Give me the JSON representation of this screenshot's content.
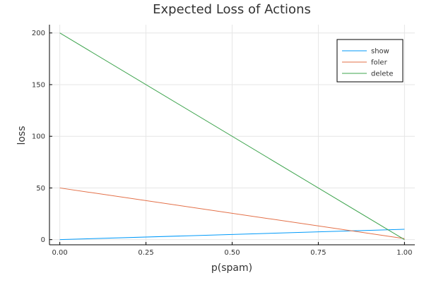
{
  "chart_data": {
    "type": "line",
    "title": "Expected Loss of Actions",
    "xlabel": "p(spam)",
    "ylabel": "loss",
    "xlim": [
      -0.03,
      1.03
    ],
    "ylim": [
      -5,
      208
    ],
    "xticks": [
      0.0,
      0.25,
      0.5,
      0.75,
      1.0
    ],
    "xtick_labels": [
      "0.00",
      "0.25",
      "0.50",
      "0.75",
      "1.00"
    ],
    "yticks": [
      0,
      50,
      100,
      150,
      200
    ],
    "ytick_labels": [
      "0",
      "50",
      "100",
      "150",
      "200"
    ],
    "grid": true,
    "legend_position": "top-right",
    "series": [
      {
        "name": "show",
        "color": "#009AFA",
        "x": [
          0,
          1
        ],
        "y": [
          0,
          10
        ]
      },
      {
        "name": "foler",
        "color": "#E36F47",
        "x": [
          0,
          1
        ],
        "y": [
          50,
          1
        ]
      },
      {
        "name": "delete",
        "color": "#3EA44E",
        "x": [
          0,
          1
        ],
        "y": [
          200,
          0
        ]
      }
    ]
  }
}
